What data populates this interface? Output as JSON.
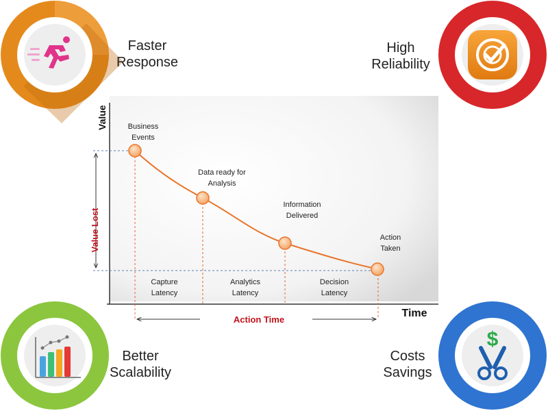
{
  "features": {
    "top_left": {
      "line1": "Faster",
      "line2": "Response",
      "icon": "running-person-icon",
      "ring_color": "#e48a1d"
    },
    "top_right": {
      "line1": "High",
      "line2": "Reliability",
      "icon": "target-check-icon",
      "ring_color": "#d7272a"
    },
    "bottom_left": {
      "line1": "Better",
      "line2": "Scalability",
      "icon": "bar-chart-icon",
      "ring_color": "#8cc63f"
    },
    "bottom_right": {
      "line1": "Costs",
      "line2": "Savings",
      "icon": "dollar-scissors-icon",
      "ring_color": "#2f74d0"
    }
  },
  "chart": {
    "y_axis_title": "Value",
    "x_axis_title": "Time",
    "value_lost_label": "Value Lost",
    "action_time_label": "Action Time",
    "points": [
      {
        "line1": "Business",
        "line2": "Events"
      },
      {
        "line1": "Data ready for",
        "line2": "Analysis"
      },
      {
        "line1": "Information",
        "line2": "Delivered"
      },
      {
        "line1": "Action",
        "line2": "Taken"
      }
    ],
    "latencies": [
      {
        "line1": "Capture",
        "line2": "Latency"
      },
      {
        "line1": "Analytics",
        "line2": "Latency"
      },
      {
        "line1": "Decision",
        "line2": "Latency"
      }
    ]
  }
}
